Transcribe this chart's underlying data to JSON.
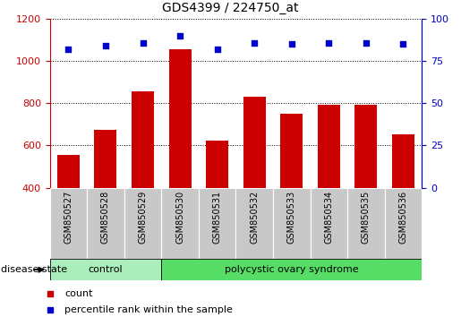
{
  "title": "GDS4399 / 224750_at",
  "samples": [
    "GSM850527",
    "GSM850528",
    "GSM850529",
    "GSM850530",
    "GSM850531",
    "GSM850532",
    "GSM850533",
    "GSM850534",
    "GSM850535",
    "GSM850536"
  ],
  "counts": [
    555,
    675,
    855,
    1055,
    625,
    830,
    750,
    795,
    795,
    655
  ],
  "percentiles": [
    82,
    84,
    86,
    90,
    82,
    86,
    85,
    86,
    86,
    85
  ],
  "ylim_left": [
    400,
    1200
  ],
  "ylim_right": [
    0,
    100
  ],
  "yticks_left": [
    400,
    600,
    800,
    1000,
    1200
  ],
  "yticks_right": [
    0,
    25,
    50,
    75,
    100
  ],
  "bar_color": "#cc0000",
  "dot_color": "#0000cc",
  "bar_width": 0.6,
  "grid_color": "#000000",
  "tick_label_area_color": "#c8c8c8",
  "control_group_color": "#aaeebb",
  "pcos_group_color": "#55dd66",
  "control_samples": 3,
  "pcos_samples": 7,
  "control_label": "control",
  "pcos_label": "polycystic ovary syndrome",
  "disease_state_label": "disease state",
  "legend_count_label": "count",
  "legend_pct_label": "percentile rank within the sample",
  "left_axis_color": "#cc0000",
  "right_axis_color": "#0000cc",
  "figsize": [
    5.15,
    3.54
  ],
  "dpi": 100
}
